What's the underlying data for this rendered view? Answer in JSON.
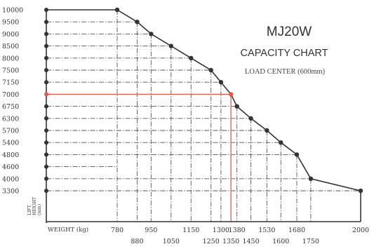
{
  "chart_data": {
    "type": "line",
    "model": "MJ20W",
    "title": "CAPACITY CHART",
    "subtitle": "LOAD  CENTER (600mm)",
    "xlabel": "WEIGHT (kg)",
    "ylabel_lines": [
      "LIFT",
      "HEIGHT",
      "(mm)"
    ],
    "y_ticks": [
      3300,
      4000,
      4600,
      4800,
      5400,
      5700,
      6300,
      6750,
      7000,
      7150,
      7500,
      8000,
      8500,
      9000,
      9500,
      10000
    ],
    "x_ticks_top": [
      780,
      950,
      1150,
      1300,
      1380,
      1530,
      1680,
      2000
    ],
    "x_ticks_bottom": [
      880,
      1050,
      1250,
      1350,
      1450,
      1600,
      1750
    ],
    "series": [
      {
        "x": [
          780,
          880,
          950,
          1050,
          1150,
          1250,
          1300,
          1350,
          1380,
          1450,
          1530,
          1600,
          1680,
          1750,
          2000
        ],
        "y": [
          10000,
          9500,
          9000,
          8500,
          8000,
          7500,
          7150,
          7000,
          6750,
          6300,
          5700,
          5400,
          4800,
          4000,
          3300
        ]
      }
    ],
    "highlight": {
      "x": 1350,
      "y": 7000
    },
    "colors": {
      "line": "#333333",
      "grid": "#555555",
      "highlight": "#e8574a",
      "marker": "#333333"
    }
  }
}
